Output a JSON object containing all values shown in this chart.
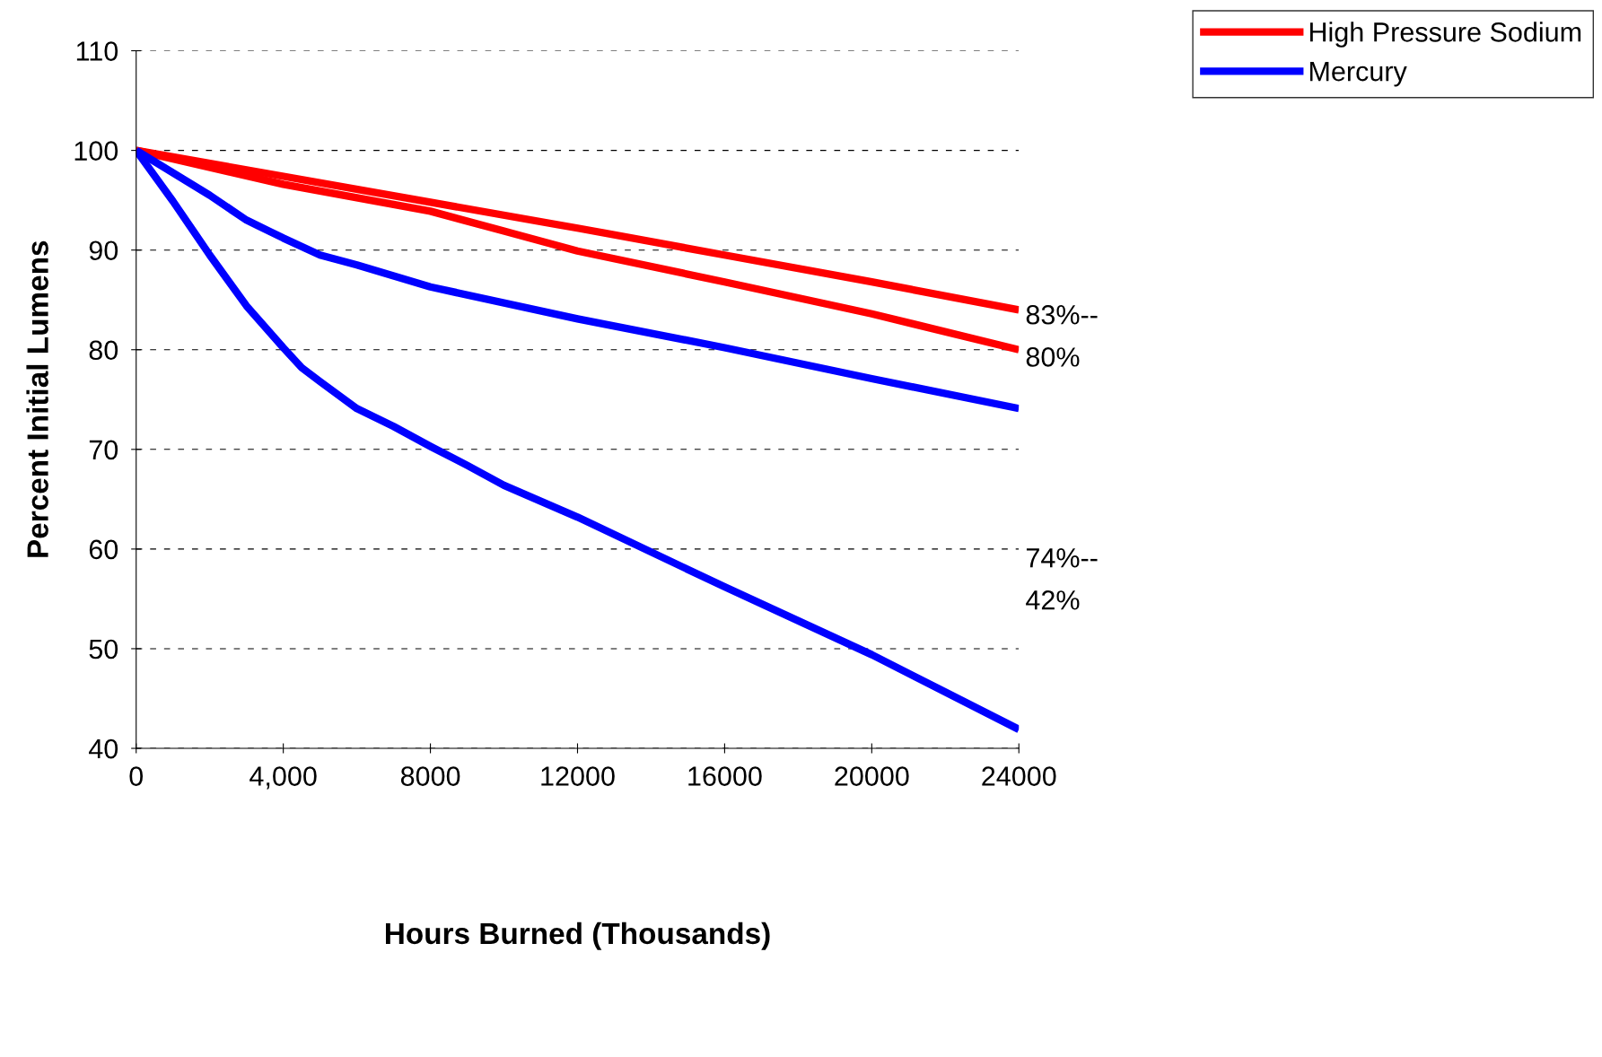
{
  "chart_data": {
    "type": "line",
    "xlabel": "Hours Burned (Thousands)",
    "ylabel": "Percent Initial Lumens",
    "xlim": [
      0,
      24000
    ],
    "xticks": [
      0,
      {
        "value": 4000,
        "label": "4,000"
      },
      8000,
      12000,
      16000,
      20000,
      24000
    ],
    "ylim": [
      40,
      110
    ],
    "yticks": [
      40,
      50,
      60,
      70,
      80,
      90,
      100,
      110
    ],
    "grid": "y",
    "legend": "top right",
    "line_style": "solid",
    "marker": "none",
    "series": [
      {
        "name": "High Pressure Sodium",
        "color": "#ff0000",
        "x": [
          0,
          8000,
          12000,
          16000,
          20000,
          24000
        ],
        "values": [
          100,
          94.8,
          92.2,
          89.5,
          86.8,
          84.0
        ]
      },
      {
        "color": "#ff0000",
        "x": [
          0,
          4000,
          8000,
          10000,
          12000,
          16000,
          20000,
          24000
        ],
        "values": [
          100,
          96.6,
          93.9,
          91.9,
          89.9,
          86.8,
          83.6,
          80.0
        ]
      },
      {
        "name": "Mercury",
        "color": "#0000ff",
        "x": [
          0,
          2000,
          3000,
          4000,
          5000,
          6000,
          8000,
          12000,
          16000,
          20000,
          24000
        ],
        "values": [
          100,
          95.5,
          93.0,
          91.2,
          89.5,
          88.5,
          86.3,
          83.1,
          80.2,
          77.1,
          74.1
        ]
      },
      {
        "color": "#0000ff",
        "x": [
          0,
          1000,
          2000,
          3000,
          3500,
          4000,
          4500,
          5000,
          6000,
          7000,
          8000,
          9000,
          10000,
          12000,
          16000,
          20000,
          24000
        ],
        "values": [
          100,
          94.9,
          89.5,
          84.4,
          82.3,
          80.2,
          78.2,
          76.8,
          74.1,
          72.3,
          70.3,
          68.4,
          66.4,
          63.2,
          56.2,
          49.4,
          41.9
        ]
      }
    ],
    "annotations": [
      "83%--",
      "80%",
      "74%--",
      "42%"
    ]
  }
}
